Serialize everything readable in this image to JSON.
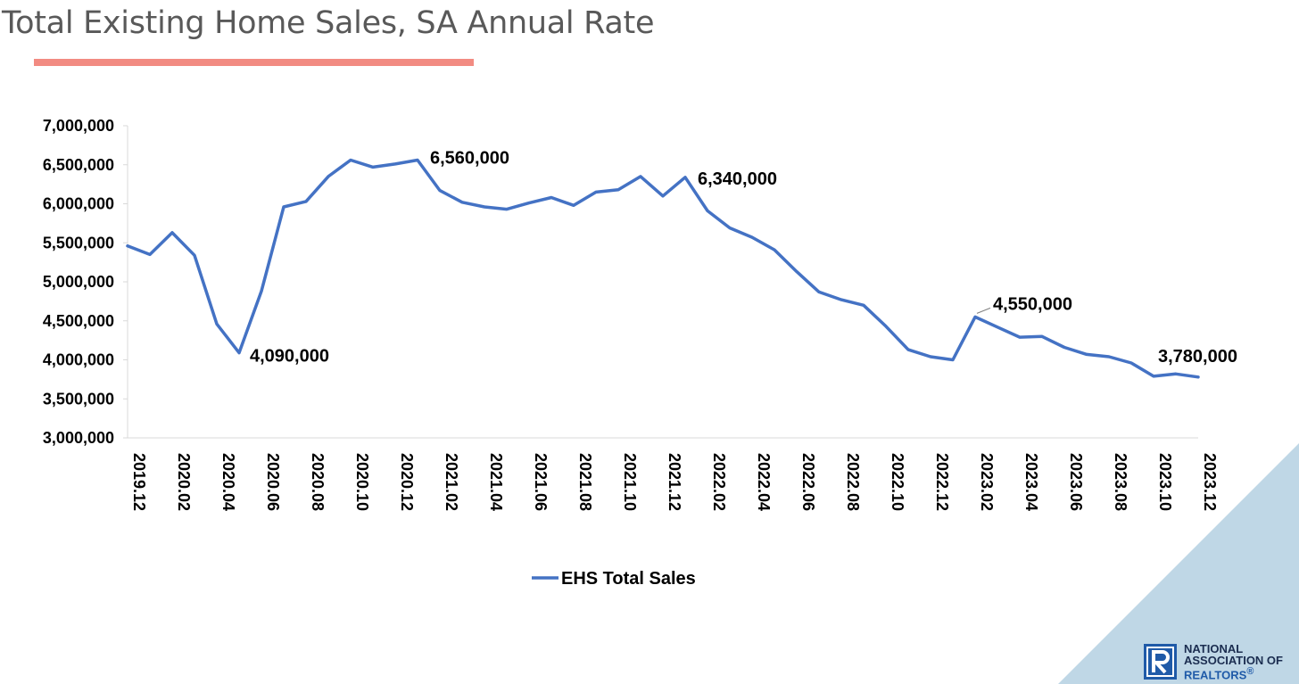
{
  "title": "Total Existing Home Sales, SA Annual Rate",
  "chart_data": {
    "type": "line",
    "title": "Total Existing Home Sales, SA Annual Rate",
    "xlabel": "",
    "ylabel": "",
    "ylim": [
      3000000,
      7000000
    ],
    "yticks": [
      3000000,
      3500000,
      4000000,
      4500000,
      5000000,
      5500000,
      6000000,
      6500000,
      7000000
    ],
    "ytick_labels": [
      "3,000,000",
      "3,500,000",
      "4,000,000",
      "4,500,000",
      "5,000,000",
      "5,500,000",
      "6,000,000",
      "6,500,000",
      "7,000,000"
    ],
    "x": [
      "2019.12",
      "2020.01",
      "2020.02",
      "2020.03",
      "2020.04",
      "2020.05",
      "2020.06",
      "2020.07",
      "2020.08",
      "2020.09",
      "2020.10",
      "2020.11",
      "2020.12",
      "2021.01",
      "2021.02",
      "2021.03",
      "2021.04",
      "2021.05",
      "2021.06",
      "2021.07",
      "2021.08",
      "2021.09",
      "2021.10",
      "2021.11",
      "2021.12",
      "2022.01",
      "2022.02",
      "2022.03",
      "2022.04",
      "2022.05",
      "2022.06",
      "2022.07",
      "2022.08",
      "2022.09",
      "2022.10",
      "2022.11",
      "2022.12",
      "2023.01",
      "2023.02",
      "2023.03",
      "2023.04",
      "2023.05",
      "2023.06",
      "2023.07",
      "2023.08",
      "2023.09",
      "2023.10",
      "2023.11",
      "2023.12"
    ],
    "xtick_labels": [
      "2019.12",
      "2020.02",
      "2020.04",
      "2020.06",
      "2020.08",
      "2020.10",
      "2020.12",
      "2021.02",
      "2021.04",
      "2021.06",
      "2021.08",
      "2021.10",
      "2021.12",
      "2022.02",
      "2022.04",
      "2022.06",
      "2022.08",
      "2022.10",
      "2022.12",
      "2023.02",
      "2023.04",
      "2023.06",
      "2023.08",
      "2023.10",
      "2023.12"
    ],
    "xtick_label_indices": [
      0,
      2,
      4,
      6,
      8,
      10,
      12,
      14,
      16,
      18,
      20,
      22,
      24,
      26,
      28,
      30,
      32,
      34,
      36,
      38,
      40,
      42,
      44,
      46,
      48
    ],
    "series": [
      {
        "name": "EHS Total Sales",
        "color": "#4472c4",
        "values": [
          5460000,
          5350000,
          5630000,
          5340000,
          4460000,
          4090000,
          4880000,
          5960000,
          6030000,
          6350000,
          6560000,
          6470000,
          6510000,
          6560000,
          6170000,
          6020000,
          5960000,
          5930000,
          6010000,
          6080000,
          5980000,
          6150000,
          6180000,
          6350000,
          6100000,
          6340000,
          5910000,
          5690000,
          5570000,
          5410000,
          5130000,
          4870000,
          4770000,
          4700000,
          4430000,
          4130000,
          4040000,
          4000000,
          4550000,
          4420000,
          4290000,
          4300000,
          4160000,
          4070000,
          4040000,
          3960000,
          3790000,
          3820000,
          3780000
        ]
      }
    ],
    "annotations": [
      {
        "index": 5,
        "label": "4,090,000"
      },
      {
        "index": 13,
        "label": "6,560,000"
      },
      {
        "index": 25,
        "label": "6,340,000"
      },
      {
        "index": 38,
        "label": "4,550,000"
      },
      {
        "index": 48,
        "label": "3,780,000"
      }
    ],
    "legend": {
      "placement": "bottom-center",
      "label": "EHS Total Sales"
    },
    "grid": false
  },
  "logo": {
    "line1": "NATIONAL",
    "line2": "ASSOCIATION OF",
    "line3": "REALTORS",
    "mark": "®",
    "brand_color": "#1f5aa8"
  }
}
